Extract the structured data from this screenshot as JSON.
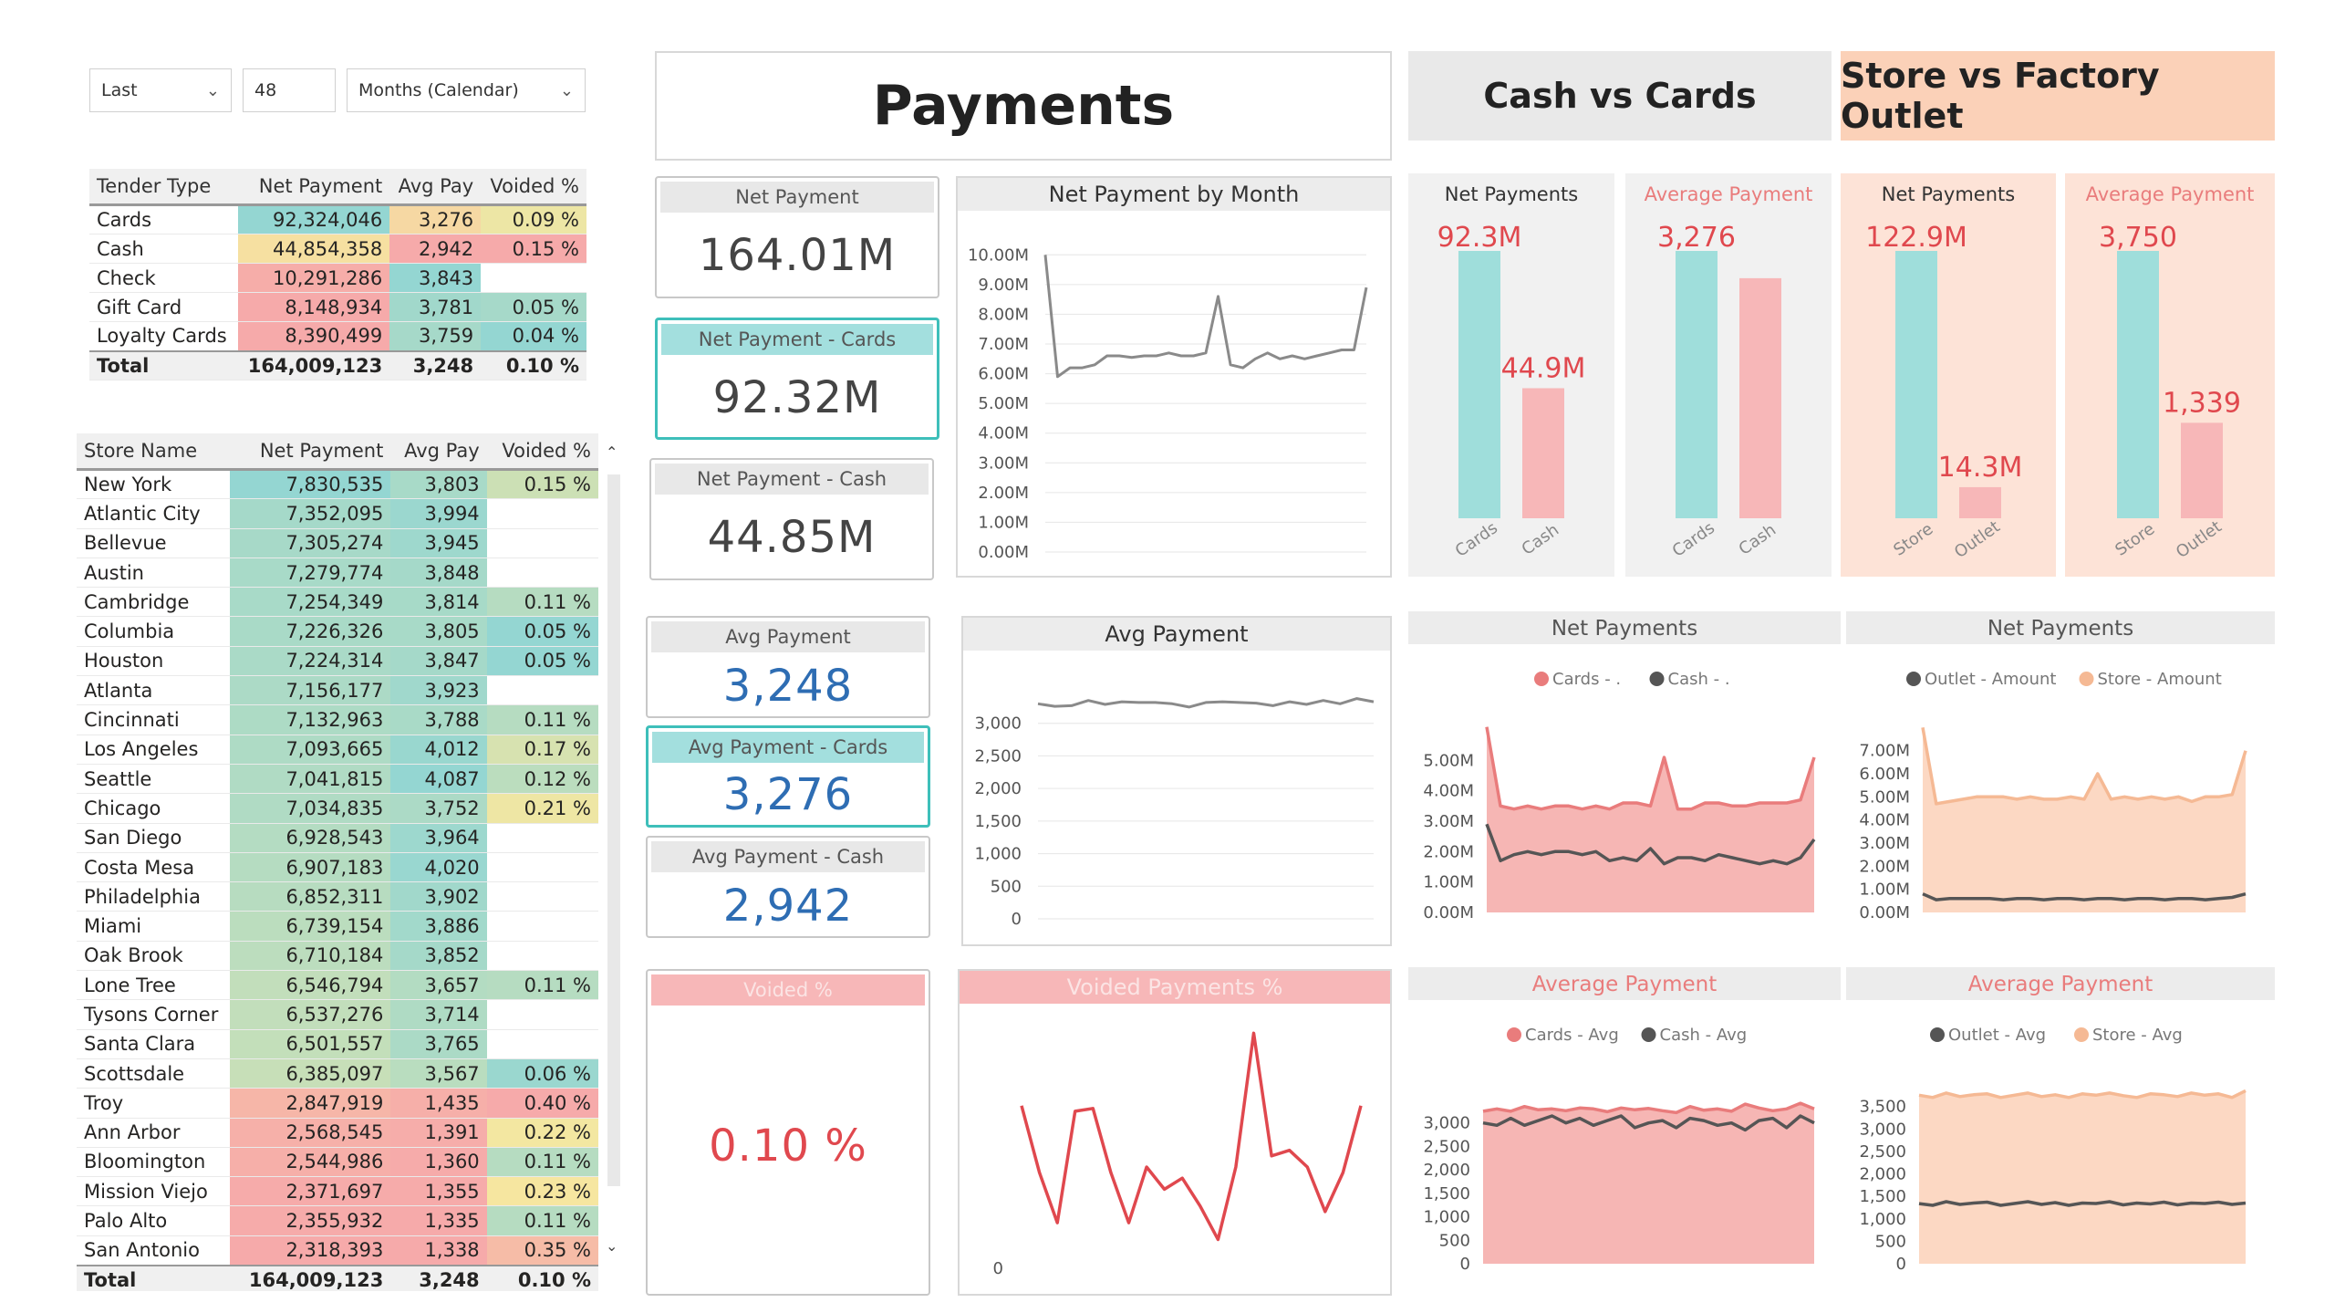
{
  "filters": {
    "relative": "Last",
    "count": "48",
    "period": "Months (Calendar)"
  },
  "tender_table": {
    "headers": [
      "Tender Type",
      "Net Payment",
      "Avg Pay",
      "Voided %"
    ],
    "rows": [
      {
        "name": "Cards",
        "net": "92,324,046",
        "avg": "3,276",
        "voided": "0.09 %"
      },
      {
        "name": "Cash",
        "net": "44,854,358",
        "avg": "2,942",
        "voided": "0.15 %"
      },
      {
        "name": "Check",
        "net": "10,291,286",
        "avg": "3,843",
        "voided": ""
      },
      {
        "name": "Gift Card",
        "net": "8,148,934",
        "avg": "3,781",
        "voided": "0.05 %"
      },
      {
        "name": "Loyalty Cards",
        "net": "8,390,499",
        "avg": "3,759",
        "voided": "0.04 %"
      }
    ],
    "total": {
      "name": "Total",
      "net": "164,009,123",
      "avg": "3,248",
      "voided": "0.10 %"
    }
  },
  "store_table": {
    "headers": [
      "Store Name",
      "Net Payment",
      "Avg Pay",
      "Voided %"
    ],
    "rows": [
      {
        "name": "New York",
        "net": "7,830,535",
        "avg": "3,803",
        "voided": "0.15 %"
      },
      {
        "name": "Atlantic City",
        "net": "7,352,095",
        "avg": "3,994",
        "voided": ""
      },
      {
        "name": "Bellevue",
        "net": "7,305,274",
        "avg": "3,945",
        "voided": ""
      },
      {
        "name": "Austin",
        "net": "7,279,774",
        "avg": "3,848",
        "voided": ""
      },
      {
        "name": "Cambridge",
        "net": "7,254,349",
        "avg": "3,814",
        "voided": "0.11 %"
      },
      {
        "name": "Columbia",
        "net": "7,226,326",
        "avg": "3,805",
        "voided": "0.05 %"
      },
      {
        "name": "Houston",
        "net": "7,224,314",
        "avg": "3,847",
        "voided": "0.05 %"
      },
      {
        "name": "Atlanta",
        "net": "7,156,177",
        "avg": "3,923",
        "voided": ""
      },
      {
        "name": "Cincinnati",
        "net": "7,132,963",
        "avg": "3,788",
        "voided": "0.11 %"
      },
      {
        "name": "Los Angeles",
        "net": "7,093,665",
        "avg": "4,012",
        "voided": "0.17 %"
      },
      {
        "name": "Seattle",
        "net": "7,041,815",
        "avg": "4,087",
        "voided": "0.12 %"
      },
      {
        "name": "Chicago",
        "net": "7,034,835",
        "avg": "3,752",
        "voided": "0.21 %"
      },
      {
        "name": "San Diego",
        "net": "6,928,543",
        "avg": "3,964",
        "voided": ""
      },
      {
        "name": "Costa Mesa",
        "net": "6,907,183",
        "avg": "4,020",
        "voided": ""
      },
      {
        "name": "Philadelphia",
        "net": "6,852,311",
        "avg": "3,902",
        "voided": ""
      },
      {
        "name": "Miami",
        "net": "6,739,154",
        "avg": "3,886",
        "voided": ""
      },
      {
        "name": "Oak Brook",
        "net": "6,710,184",
        "avg": "3,852",
        "voided": ""
      },
      {
        "name": "Lone Tree",
        "net": "6,546,794",
        "avg": "3,657",
        "voided": "0.11 %"
      },
      {
        "name": "Tysons Corner",
        "net": "6,537,276",
        "avg": "3,714",
        "voided": ""
      },
      {
        "name": "Santa Clara",
        "net": "6,501,557",
        "avg": "3,765",
        "voided": ""
      },
      {
        "name": "Scottsdale",
        "net": "6,385,097",
        "avg": "3,567",
        "voided": "0.06 %"
      },
      {
        "name": "Troy",
        "net": "2,847,919",
        "avg": "1,435",
        "voided": "0.40 %"
      },
      {
        "name": "Ann Arbor",
        "net": "2,568,545",
        "avg": "1,391",
        "voided": "0.22 %"
      },
      {
        "name": "Bloomington",
        "net": "2,544,986",
        "avg": "1,360",
        "voided": "0.11 %"
      },
      {
        "name": "Mission Viejo",
        "net": "2,371,697",
        "avg": "1,355",
        "voided": "0.23 %"
      },
      {
        "name": "Palo Alto",
        "net": "2,355,932",
        "avg": "1,335",
        "voided": "0.11 %"
      },
      {
        "name": "San Antonio",
        "net": "2,318,393",
        "avg": "1,338",
        "voided": "0.35 %"
      }
    ],
    "total": {
      "name": "Total",
      "net": "164,009,123",
      "avg": "3,248",
      "voided": "0.10 %"
    }
  },
  "title": "Payments",
  "section_cash_cards": "Cash vs Cards",
  "section_store_outlet": "Store vs Factory Outlet",
  "kpis": {
    "net_payment": {
      "label": "Net Payment",
      "value": "164.01M"
    },
    "net_payment_cards": {
      "label": "Net Payment - Cards",
      "value": "92.32M"
    },
    "net_payment_cash": {
      "label": "Net Payment - Cash",
      "value": "44.85M"
    },
    "avg_payment": {
      "label": "Avg Payment",
      "value": "3,248"
    },
    "avg_payment_cards": {
      "label": "Avg Payment - Cards",
      "value": "3,276"
    },
    "avg_payment_cash": {
      "label": "Avg Payment - Cash",
      "value": "2,942"
    },
    "voided": {
      "label": "Voided %",
      "value": "0.10 %"
    }
  },
  "colors": {
    "teal": "#9fdedb",
    "pink": "#f7b7b8",
    "red": "#e0484e",
    "peach": "#fbd1b8",
    "grey_line": "#555555",
    "blue_value": "#2e6db3"
  },
  "chart_data": [
    {
      "id": "net_by_month",
      "type": "line",
      "title": "Net Payment by Month",
      "yticks": [
        "10.00M",
        "9.00M",
        "8.00M",
        "7.00M",
        "6.00M",
        "5.00M",
        "4.00M",
        "3.00M",
        "2.00M",
        "1.00M",
        "0.00M"
      ],
      "ylim": [
        0,
        10.5
      ],
      "values": [
        10.0,
        5.9,
        6.2,
        6.2,
        6.3,
        6.6,
        6.6,
        6.55,
        6.6,
        6.6,
        6.7,
        6.6,
        6.6,
        6.7,
        8.6,
        6.3,
        6.2,
        6.5,
        6.7,
        6.5,
        6.6,
        6.5,
        6.6,
        6.7,
        6.8,
        6.8,
        8.9
      ]
    },
    {
      "id": "avg_payment_line",
      "type": "line",
      "title": "Avg Payment",
      "yticks": [
        "3,000",
        "2,500",
        "2,000",
        "1,500",
        "1,000",
        "500",
        "0"
      ],
      "ylim": [
        0,
        3500
      ],
      "values": [
        3300,
        3260,
        3270,
        3350,
        3290,
        3330,
        3320,
        3320,
        3300,
        3250,
        3320,
        3330,
        3320,
        3310,
        3270,
        3330,
        3290,
        3350,
        3300,
        3380,
        3330
      ]
    },
    {
      "id": "voided_line",
      "type": "line",
      "title": "Voided Payments %",
      "yticks": [
        "0"
      ],
      "ylim": [
        0,
        0.45
      ],
      "values": [
        0.29,
        0.17,
        0.08,
        0.28,
        0.285,
        0.17,
        0.08,
        0.18,
        0.14,
        0.16,
        0.11,
        0.05,
        0.18,
        0.42,
        0.2,
        0.21,
        0.18,
        0.1,
        0.17,
        0.29
      ]
    },
    {
      "id": "net_payments_cash_cards",
      "type": "bar",
      "title": "Net Payments",
      "categories": [
        "Cards",
        "Cash"
      ],
      "values": [
        92.3,
        44.9
      ],
      "labels": [
        "92.3M",
        "44.9M"
      ]
    },
    {
      "id": "avg_payment_cash_cards",
      "type": "bar",
      "title": "Average Payment",
      "categories": [
        "Cards",
        "Cash"
      ],
      "values": [
        3276,
        2942
      ],
      "labels": [
        "3,276",
        ""
      ]
    },
    {
      "id": "net_payments_store_outlet",
      "type": "bar",
      "title": "Net Payments",
      "categories": [
        "Store",
        "Outlet"
      ],
      "values": [
        122.9,
        14.3
      ],
      "labels": [
        "122.9M",
        "14.3M"
      ]
    },
    {
      "id": "avg_payment_store_outlet",
      "type": "bar",
      "title": "Average Payment",
      "categories": [
        "Store",
        "Outlet"
      ],
      "values": [
        3750,
        1339
      ],
      "labels": [
        "3,750",
        "1,339"
      ]
    },
    {
      "id": "net_area_cash_cards",
      "type": "area",
      "title": "Net Payments",
      "legend": [
        "Cards - .",
        "Cash - ."
      ],
      "yticks": [
        "5.00M",
        "4.00M",
        "3.00M",
        "2.00M",
        "1.00M",
        "0.00M"
      ],
      "ylim": [
        0,
        6
      ],
      "series": [
        {
          "name": "Cards - .",
          "values": [
            6.1,
            3.5,
            3.4,
            3.5,
            3.4,
            3.5,
            3.5,
            3.4,
            3.5,
            3.4,
            3.6,
            3.6,
            3.5,
            5.1,
            3.4,
            3.4,
            3.6,
            3.6,
            3.5,
            3.5,
            3.6,
            3.6,
            3.6,
            3.7,
            5.1
          ]
        },
        {
          "name": "Cash - .",
          "values": [
            2.9,
            1.7,
            1.9,
            2.0,
            1.9,
            2.0,
            2.0,
            1.9,
            2.0,
            1.7,
            1.8,
            1.7,
            2.1,
            1.6,
            1.8,
            1.8,
            1.7,
            1.9,
            1.8,
            1.7,
            1.6,
            1.7,
            1.6,
            1.8,
            2.4
          ]
        }
      ]
    },
    {
      "id": "net_area_store_outlet",
      "type": "area",
      "title": "Net Payments",
      "legend": [
        "Outlet - Amount",
        "Store - Amount"
      ],
      "yticks": [
        "7.00M",
        "6.00M",
        "5.00M",
        "4.00M",
        "3.00M",
        "2.00M",
        "1.00M",
        "0.00M"
      ],
      "ylim": [
        0,
        7.5
      ],
      "series": [
        {
          "name": "Store - Amount",
          "values": [
            8.0,
            4.7,
            4.8,
            4.9,
            5.0,
            5.0,
            5.0,
            4.9,
            5.0,
            4.9,
            4.9,
            5.0,
            4.9,
            6.0,
            4.9,
            5.0,
            4.9,
            5.0,
            4.9,
            5.0,
            4.8,
            5.0,
            5.0,
            5.1,
            7.0
          ]
        },
        {
          "name": "Outlet - Amount",
          "values": [
            0.8,
            0.55,
            0.6,
            0.6,
            0.6,
            0.6,
            0.55,
            0.6,
            0.6,
            0.55,
            0.6,
            0.6,
            0.55,
            0.6,
            0.6,
            0.55,
            0.6,
            0.6,
            0.55,
            0.6,
            0.6,
            0.55,
            0.6,
            0.65,
            0.8
          ]
        }
      ]
    },
    {
      "id": "avg_area_cash_cards",
      "type": "area",
      "title": "Average Payment",
      "legend": [
        "Cards - Avg",
        "Cash - Avg"
      ],
      "yticks": [
        "3,000",
        "2,500",
        "2,000",
        "1,500",
        "1,000",
        "500",
        "0"
      ],
      "ylim": [
        0,
        3500
      ],
      "series": [
        {
          "name": "Cards - Avg",
          "values": [
            3250,
            3300,
            3250,
            3350,
            3280,
            3300,
            3260,
            3320,
            3300,
            3240,
            3320,
            3280,
            3310,
            3260,
            3220,
            3350,
            3270,
            3300,
            3250,
            3400,
            3320,
            3260,
            3300,
            3420,
            3300
          ]
        },
        {
          "name": "Cash - Avg",
          "values": [
            3000,
            2950,
            3100,
            2950,
            3050,
            3150,
            3000,
            3100,
            2950,
            3050,
            3150,
            2900,
            3000,
            3050,
            2900,
            3100,
            3050,
            2950,
            3000,
            2850,
            3050,
            3100,
            2900,
            3150,
            3000
          ]
        }
      ]
    },
    {
      "id": "avg_area_store_outlet",
      "type": "area",
      "title": "Average Payment",
      "legend": [
        "Outlet - Avg",
        "Store - Avg"
      ],
      "yticks": [
        "3,500",
        "3,000",
        "2,500",
        "2,000",
        "1,500",
        "1,000",
        "500",
        "0"
      ],
      "ylim": [
        0,
        4000
      ],
      "series": [
        {
          "name": "Store - Avg",
          "values": [
            3750,
            3700,
            3800,
            3720,
            3760,
            3780,
            3700,
            3750,
            3800,
            3720,
            3760,
            3700,
            3780,
            3750,
            3800,
            3740,
            3700,
            3780,
            3760,
            3720,
            3800,
            3750,
            3780,
            3700,
            3850
          ]
        },
        {
          "name": "Outlet - Avg",
          "values": [
            1339,
            1300,
            1380,
            1320,
            1350,
            1370,
            1300,
            1340,
            1380,
            1320,
            1360,
            1300,
            1350,
            1340,
            1380,
            1310,
            1350,
            1330,
            1370,
            1310,
            1350,
            1340,
            1370,
            1320,
            1350
          ]
        }
      ]
    }
  ]
}
